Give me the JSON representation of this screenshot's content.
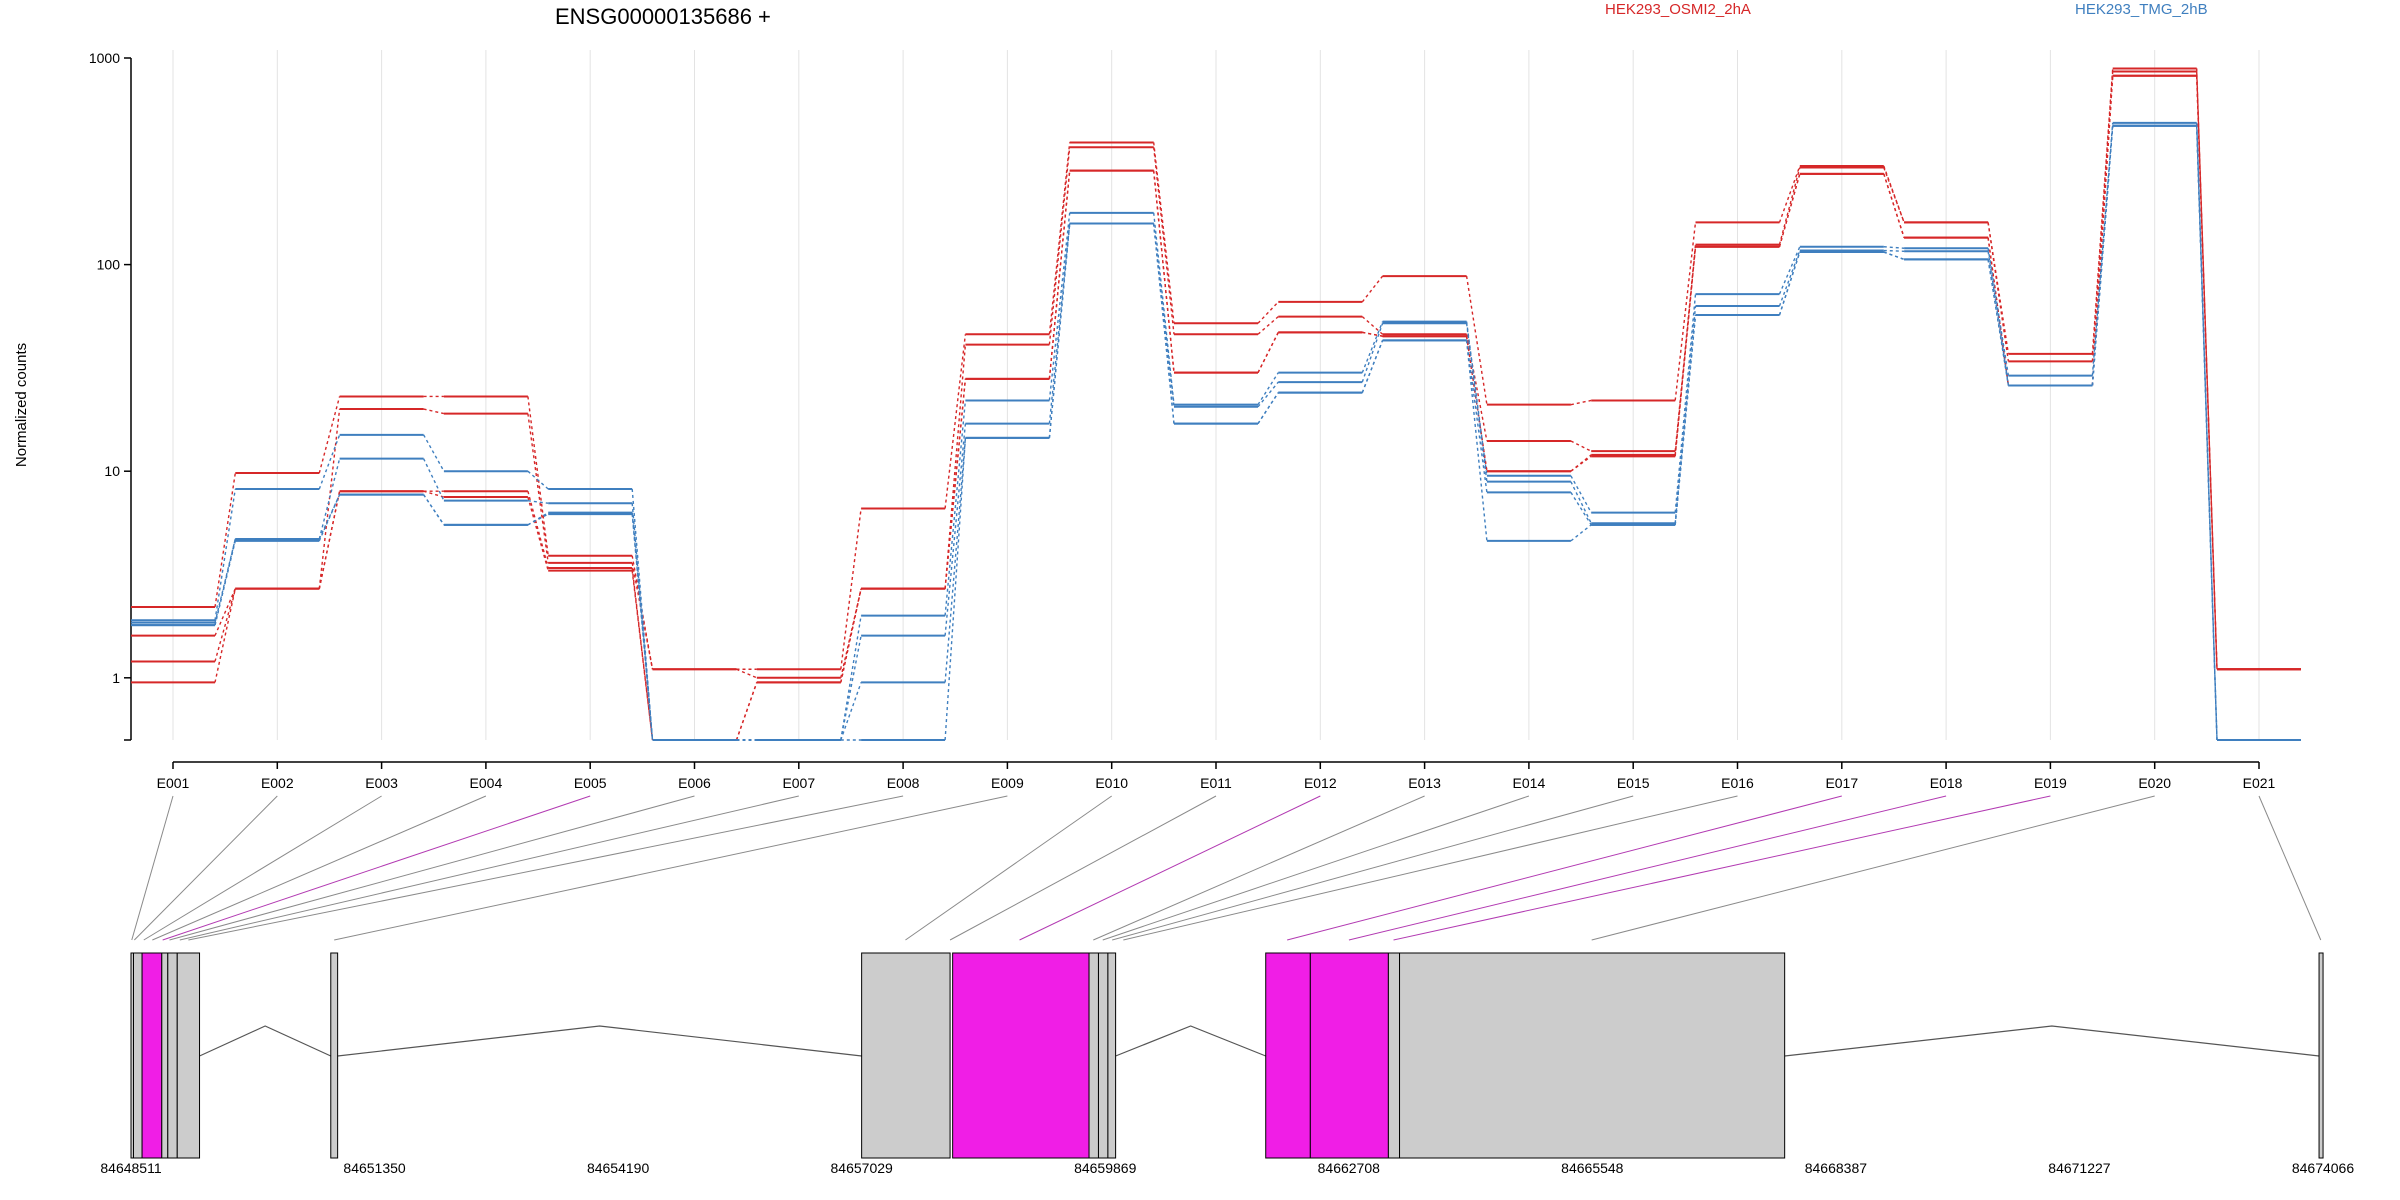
{
  "chart_data": {
    "type": "line",
    "title": "ENSG00000135686 +",
    "ylabel": "Normalized counts",
    "y_scale": "log",
    "y_ticks": [
      1,
      10,
      100,
      1000
    ],
    "y_tick_labels": [
      "1",
      "10",
      "100",
      "1000"
    ],
    "grid": "vertical lines at each exon",
    "legend_position": "top",
    "categories": [
      "E001",
      "E002",
      "E003",
      "E004",
      "E005",
      "E006",
      "E007",
      "E008",
      "E009",
      "E010",
      "E011",
      "E012",
      "E013",
      "E014",
      "E015",
      "E016",
      "E017",
      "E018",
      "E019",
      "E020",
      "E021"
    ],
    "series": [
      {
        "name": "HEK293_OSMI2_2hA",
        "color": "#d62728",
        "values": [
          2.2,
          9.8,
          23,
          23,
          3.9,
          1.1,
          1.1,
          6.6,
          46,
          390,
          52,
          66,
          88,
          21,
          22,
          160,
          300,
          160,
          37,
          890,
          1.1
        ]
      },
      {
        "color": "#d62728",
        "values": [
          1.6,
          2.7,
          20,
          19,
          3.6,
          1.1,
          1.0,
          2.7,
          41,
          370,
          46,
          56,
          46,
          14,
          12.5,
          125,
          295,
          160,
          34,
          860,
          1.1
        ]
      },
      {
        "color": "#d62728",
        "values": [
          1.2,
          2.7,
          8,
          8,
          3.4,
          0.5,
          0.95,
          2.7,
          28,
          285,
          30,
          47,
          45,
          10,
          12,
          122,
          275,
          135,
          26,
          820,
          1.1
        ]
      },
      {
        "color": "#d62728",
        "values": [
          0.95,
          2.7,
          8,
          7.5,
          3.3,
          0.5,
          0.95,
          2.7,
          28,
          285,
          30,
          47,
          45,
          10,
          11.8,
          122,
          275,
          135,
          26,
          820,
          1.1
        ]
      },
      {
        "name": "HEK293_TMG_2hB",
        "color": "#3f7fbf",
        "values": [
          1.9,
          8.2,
          15,
          10,
          8.2,
          0.5,
          0.5,
          2.0,
          22,
          178,
          21,
          30,
          53,
          9.5,
          6.3,
          72,
          122,
          120,
          29,
          485,
          0.5
        ]
      },
      {
        "color": "#3f7fbf",
        "values": [
          1.85,
          4.7,
          11.5,
          7.2,
          7.0,
          0.5,
          0.5,
          1.6,
          17,
          158,
          20.5,
          27,
          52,
          8.9,
          5.6,
          63,
          117,
          116,
          26,
          470,
          0.5
        ]
      },
      {
        "color": "#3f7fbf",
        "values": [
          1.8,
          4.7,
          7.7,
          5.5,
          6.3,
          0.5,
          0.5,
          0.95,
          14.5,
          158,
          17,
          24,
          43,
          7.9,
          5.5,
          57,
          115,
          106,
          26,
          470,
          0.5
        ]
      },
      {
        "color": "#3f7fbf",
        "values": [
          1.8,
          4.6,
          7.7,
          5.5,
          6.2,
          0.5,
          0.5,
          0.5,
          14.5,
          158,
          17,
          24,
          43,
          4.6,
          5.5,
          57,
          115,
          106,
          26,
          470,
          0.5
        ]
      }
    ]
  },
  "gene_model": {
    "coord_labels": [
      "84648511",
      "84651350",
      "84654190",
      "84657029",
      "84659869",
      "84662708",
      "84665548",
      "84668387",
      "84671227",
      "84674066"
    ],
    "coord_range": [
      84648511,
      84674066
    ],
    "highlight_color": "#f01ee6",
    "exon_color": "#cccccc",
    "exon_blocks": [
      {
        "start": 84648511,
        "end": 84648540,
        "highlight": false
      },
      {
        "start": 84648540,
        "end": 84648640,
        "highlight": false
      },
      {
        "start": 84648640,
        "end": 84648870,
        "highlight": true
      },
      {
        "start": 84648870,
        "end": 84648940,
        "highlight": false
      },
      {
        "start": 84648940,
        "end": 84649050,
        "highlight": false
      },
      {
        "start": 84649050,
        "end": 84649310,
        "highlight": false
      },
      {
        "start": 84650840,
        "end": 84650920,
        "highlight": false
      },
      {
        "start": 84657029,
        "end": 84658060,
        "highlight": false
      },
      {
        "start": 84658090,
        "end": 84659680,
        "highlight": true
      },
      {
        "start": 84659680,
        "end": 84659790,
        "highlight": false
      },
      {
        "start": 84659790,
        "end": 84659900,
        "highlight": false
      },
      {
        "start": 84659900,
        "end": 84659990,
        "highlight": false
      },
      {
        "start": 84661740,
        "end": 84662260,
        "highlight": true
      },
      {
        "start": 84662260,
        "end": 84663170,
        "highlight": true
      },
      {
        "start": 84663170,
        "end": 84663300,
        "highlight": false
      },
      {
        "start": 84663300,
        "end": 84667790,
        "highlight": false
      },
      {
        "start": 84674020,
        "end": 84674066,
        "highlight": false
      }
    ],
    "exon_connections": [
      {
        "exon": "E001",
        "coord": 84648520,
        "highlight": false
      },
      {
        "exon": "E002",
        "coord": 84648550,
        "highlight": false
      },
      {
        "exon": "E003",
        "coord": 84648660,
        "highlight": false
      },
      {
        "exon": "E004",
        "coord": 84648760,
        "highlight": false
      },
      {
        "exon": "E005",
        "coord": 84648880,
        "highlight": true
      },
      {
        "exon": "E006",
        "coord": 84648960,
        "highlight": false
      },
      {
        "exon": "E007",
        "coord": 84649080,
        "highlight": false
      },
      {
        "exon": "E008",
        "coord": 84649180,
        "highlight": false
      },
      {
        "exon": "E009",
        "coord": 84650880,
        "highlight": false
      },
      {
        "exon": "E010",
        "coord": 84657540,
        "highlight": false
      },
      {
        "exon": "E011",
        "coord": 84658060,
        "highlight": false
      },
      {
        "exon": "E012",
        "coord": 84658870,
        "highlight": true
      },
      {
        "exon": "E013",
        "coord": 84659730,
        "highlight": false
      },
      {
        "exon": "E014",
        "coord": 84659840,
        "highlight": false
      },
      {
        "exon": "E015",
        "coord": 84659950,
        "highlight": false
      },
      {
        "exon": "E016",
        "coord": 84660080,
        "highlight": false
      },
      {
        "exon": "E017",
        "coord": 84661990,
        "highlight": true
      },
      {
        "exon": "E018",
        "coord": 84662710,
        "highlight": true
      },
      {
        "exon": "E019",
        "coord": 84663230,
        "highlight": true
      },
      {
        "exon": "E020",
        "coord": 84665540,
        "highlight": false
      },
      {
        "exon": "E021",
        "coord": 84674040,
        "highlight": false
      }
    ],
    "intron_peaks": [
      {
        "from": 84649310,
        "to": 84650840
      },
      {
        "from": 84650920,
        "to": 84657029
      },
      {
        "from": 84659990,
        "to": 84661740
      },
      {
        "from": 84667790,
        "to": 84674020
      }
    ]
  }
}
